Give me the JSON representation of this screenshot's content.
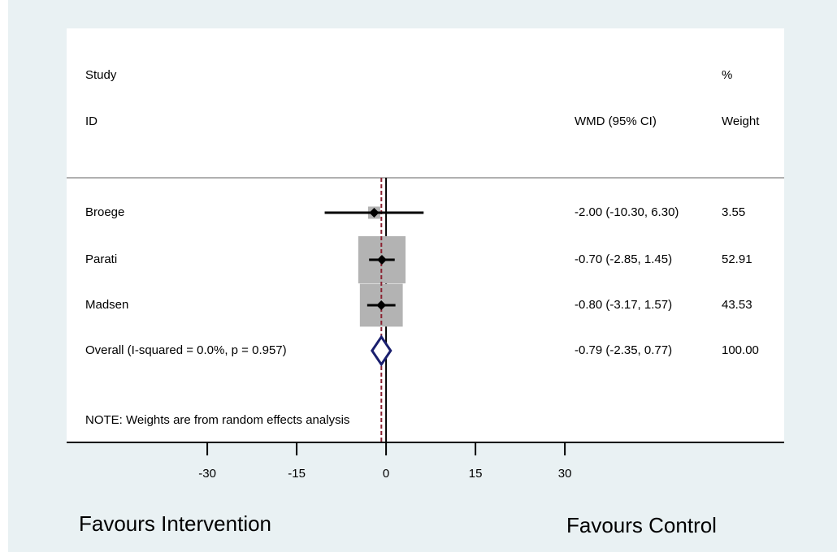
{
  "chart_data": {
    "type": "forest",
    "columns": {
      "study": "Study",
      "id": "ID",
      "effect": "WMD (95% CI)",
      "percent": "%",
      "weight": "Weight"
    },
    "categories": [
      "Broege",
      "Parati",
      "Madsen",
      "Overall  (I-squared = 0.0%, p = 0.957)"
    ],
    "values": [
      -2.0,
      -0.7,
      -0.8,
      -0.79
    ],
    "lower": [
      -10.3,
      -2.85,
      -3.17,
      -2.35
    ],
    "upper": [
      6.3,
      1.45,
      1.57,
      0.77
    ],
    "value_labels": [
      "-2.00 (-10.30, 6.30)",
      "-0.70 (-2.85, 1.45)",
      "-0.80 (-3.17, 1.57)",
      "-0.79 (-2.35, 0.77)"
    ],
    "weights": [
      3.55,
      52.91,
      43.53,
      {
        "value": 100,
        "label": "100.00"
      }
    ],
    "note": "NOTE: Weights are from random effects analysis",
    "xlim": [
      -53.6,
      66.8
    ],
    "xticks": [
      -30,
      -15,
      0,
      15,
      30
    ],
    "x_label_left": "Favours Intervention",
    "x_label_right": "Favours Control",
    "colors": {
      "box": "#b3b3b3",
      "estimate": "#000000",
      "overall": "#1a1f6e",
      "overall_line": "#8b2332"
    }
  }
}
